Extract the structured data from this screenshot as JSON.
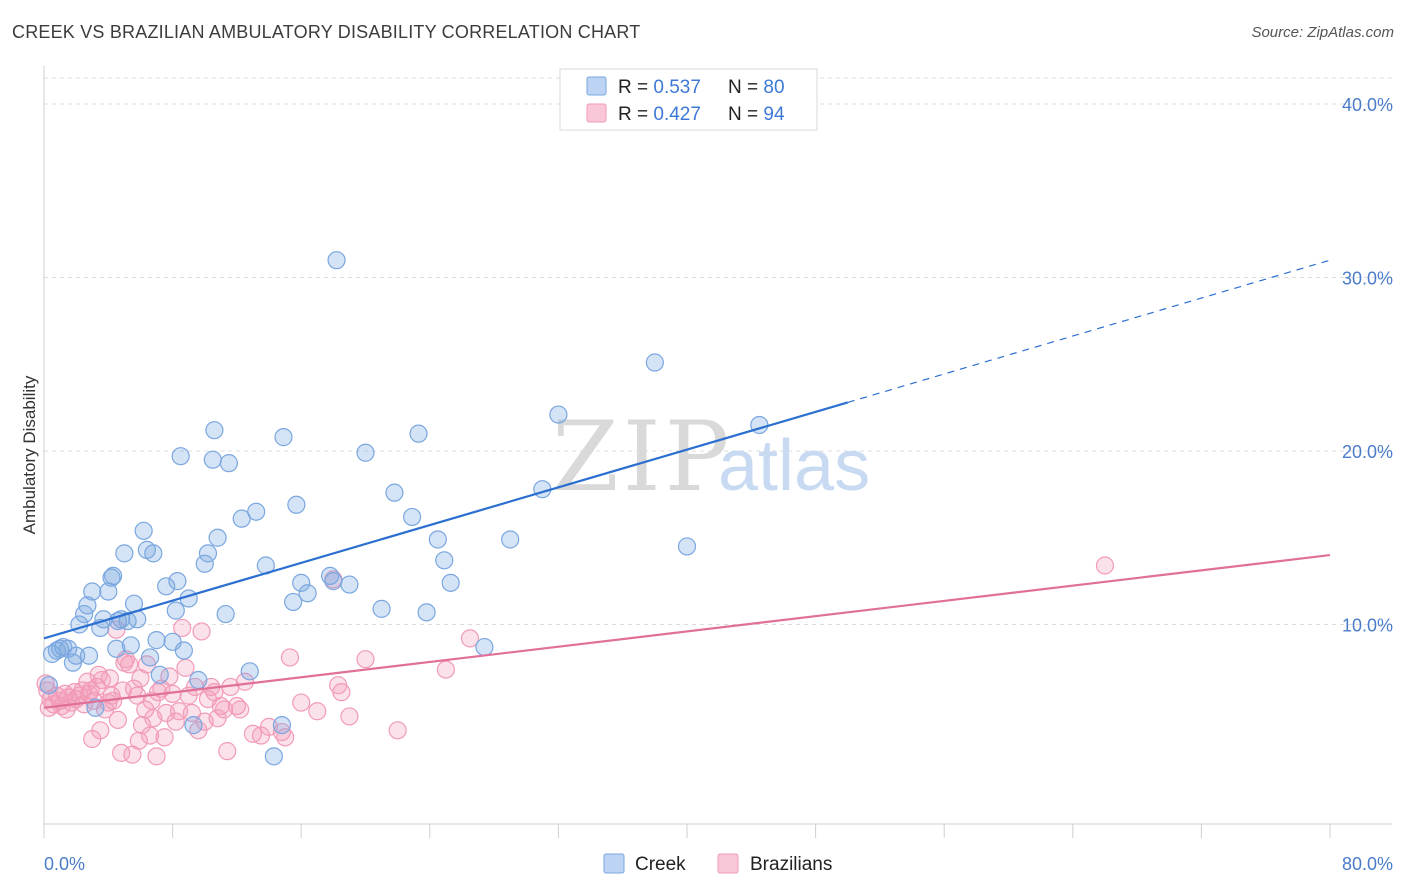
{
  "header": {
    "title": "CREEK VS BRAZILIAN AMBULATORY DISABILITY CORRELATION CHART",
    "source": "Source: ZipAtlas.com"
  },
  "watermark": {
    "part1": "ZIP",
    "part2": "atlas"
  },
  "chart_data": {
    "type": "scatter",
    "ylabel": "Ambulatory Disability",
    "xlim": [
      0,
      80
    ],
    "ylim": [
      -1.5,
      41.5
    ],
    "x_tick_labels": [
      "0.0%",
      "80.0%"
    ],
    "y_ticks": [
      10,
      20,
      30,
      40
    ],
    "y_tick_labels": [
      "10.0%",
      "20.0%",
      "30.0%",
      "40.0%"
    ],
    "grid": true,
    "legend_position": "top-center",
    "series": [
      {
        "name": "Creek",
        "color": "#7aa7e0",
        "line_color": "#2b6fd0",
        "R": "0.537",
        "N": "80",
        "R_label": "R = 0.537",
        "N_label": "N = 80",
        "trend": {
          "x0": 0,
          "y0": 9.2,
          "x1": 50,
          "y1": 22.8,
          "x_dash_end": 80,
          "y_dash_end": 31.0
        },
        "points": [
          [
            0.3,
            6.5
          ],
          [
            0.5,
            8.3
          ],
          [
            0.8,
            8.5
          ],
          [
            1.2,
            8.7
          ],
          [
            1.5,
            8.6
          ],
          [
            1.8,
            7.8
          ],
          [
            2.0,
            8.2
          ],
          [
            2.2,
            10.0
          ],
          [
            2.5,
            10.6
          ],
          [
            2.7,
            11.1
          ],
          [
            2.8,
            8.2
          ],
          [
            3.0,
            11.9
          ],
          [
            3.2,
            5.2
          ],
          [
            3.5,
            9.8
          ],
          [
            3.7,
            10.3
          ],
          [
            4.0,
            11.9
          ],
          [
            4.2,
            12.7
          ],
          [
            4.3,
            12.8
          ],
          [
            4.6,
            10.2
          ],
          [
            4.8,
            10.3
          ],
          [
            5.0,
            14.1
          ],
          [
            5.2,
            10.2
          ],
          [
            5.4,
            8.8
          ],
          [
            5.6,
            11.2
          ],
          [
            5.8,
            10.3
          ],
          [
            6.2,
            15.4
          ],
          [
            6.4,
            14.3
          ],
          [
            6.6,
            8.1
          ],
          [
            6.8,
            14.1
          ],
          [
            7.0,
            9.1
          ],
          [
            7.2,
            7.1
          ],
          [
            7.6,
            12.2
          ],
          [
            8.0,
            9.0
          ],
          [
            8.2,
            10.8
          ],
          [
            8.3,
            12.5
          ],
          [
            8.5,
            19.7
          ],
          [
            8.7,
            8.5
          ],
          [
            9.0,
            11.5
          ],
          [
            9.3,
            4.2
          ],
          [
            9.6,
            6.8
          ],
          [
            10.0,
            13.5
          ],
          [
            10.2,
            14.1
          ],
          [
            10.5,
            19.5
          ],
          [
            10.6,
            21.2
          ],
          [
            10.8,
            15.0
          ],
          [
            11.3,
            10.6
          ],
          [
            11.5,
            19.3
          ],
          [
            12.3,
            16.1
          ],
          [
            12.8,
            7.3
          ],
          [
            13.2,
            16.5
          ],
          [
            13.8,
            13.4
          ],
          [
            14.3,
            2.4
          ],
          [
            14.8,
            4.2
          ],
          [
            14.9,
            20.8
          ],
          [
            15.5,
            11.3
          ],
          [
            15.7,
            16.9
          ],
          [
            16.0,
            12.4
          ],
          [
            16.4,
            11.8
          ],
          [
            17.8,
            12.8
          ],
          [
            18.0,
            12.5
          ],
          [
            18.2,
            31.0
          ],
          [
            19.0,
            12.3
          ],
          [
            20.0,
            19.9
          ],
          [
            21.0,
            10.9
          ],
          [
            21.8,
            17.6
          ],
          [
            22.9,
            16.2
          ],
          [
            23.3,
            21.0
          ],
          [
            23.8,
            10.7
          ],
          [
            24.5,
            14.9
          ],
          [
            24.9,
            13.7
          ],
          [
            25.3,
            12.4
          ],
          [
            27.4,
            8.7
          ],
          [
            29.0,
            14.9
          ],
          [
            31.0,
            17.8
          ],
          [
            32.0,
            22.1
          ],
          [
            38.0,
            25.1
          ],
          [
            40.0,
            14.5
          ],
          [
            44.5,
            21.5
          ],
          [
            1.0,
            8.6
          ],
          [
            4.5,
            8.6
          ]
        ]
      },
      {
        "name": "Brazilians",
        "color": "#f29bb8",
        "line_color": "#e0709a",
        "R": "0.427",
        "N": "94",
        "R_label": "R = 0.427",
        "N_label": "N = 94",
        "trend": {
          "x0": 0,
          "y0": 5.2,
          "x1": 80,
          "y1": 14.0
        },
        "points": [
          [
            0.2,
            6.2
          ],
          [
            0.4,
            5.7
          ],
          [
            0.6,
            5.4
          ],
          [
            0.8,
            5.9
          ],
          [
            1.0,
            5.6
          ],
          [
            1.1,
            5.3
          ],
          [
            1.3,
            6.0
          ],
          [
            1.5,
            5.8
          ],
          [
            1.7,
            5.5
          ],
          [
            1.9,
            6.1
          ],
          [
            2.0,
            5.7
          ],
          [
            2.2,
            5.9
          ],
          [
            2.4,
            6.2
          ],
          [
            2.5,
            5.4
          ],
          [
            2.7,
            6.7
          ],
          [
            2.8,
            6.0
          ],
          [
            3.0,
            3.4
          ],
          [
            3.1,
            5.6
          ],
          [
            3.3,
            6.4
          ],
          [
            3.4,
            7.1
          ],
          [
            3.5,
            3.9
          ],
          [
            3.6,
            6.8
          ],
          [
            3.8,
            5.1
          ],
          [
            4.0,
            5.5
          ],
          [
            4.1,
            6.9
          ],
          [
            4.2,
            5.9
          ],
          [
            4.3,
            5.6
          ],
          [
            4.5,
            9.7
          ],
          [
            4.6,
            4.5
          ],
          [
            4.8,
            2.6
          ],
          [
            4.9,
            6.2
          ],
          [
            5.0,
            7.8
          ],
          [
            5.1,
            8.0
          ],
          [
            5.3,
            7.7
          ],
          [
            5.5,
            2.5
          ],
          [
            5.6,
            6.3
          ],
          [
            5.8,
            5.9
          ],
          [
            5.9,
            3.3
          ],
          [
            6.0,
            6.9
          ],
          [
            6.1,
            4.2
          ],
          [
            6.3,
            5.1
          ],
          [
            6.4,
            7.7
          ],
          [
            6.6,
            3.6
          ],
          [
            6.7,
            5.6
          ],
          [
            6.8,
            4.6
          ],
          [
            7.0,
            2.4
          ],
          [
            7.1,
            6.1
          ],
          [
            7.3,
            6.3
          ],
          [
            7.5,
            3.5
          ],
          [
            7.6,
            4.9
          ],
          [
            7.8,
            7.0
          ],
          [
            8.0,
            6.0
          ],
          [
            8.2,
            4.4
          ],
          [
            8.4,
            5.0
          ],
          [
            8.6,
            9.8
          ],
          [
            8.8,
            7.5
          ],
          [
            9.0,
            5.9
          ],
          [
            9.2,
            4.9
          ],
          [
            9.4,
            6.4
          ],
          [
            9.6,
            3.9
          ],
          [
            9.8,
            9.6
          ],
          [
            10.0,
            4.4
          ],
          [
            10.2,
            5.7
          ],
          [
            10.4,
            6.4
          ],
          [
            10.6,
            6.1
          ],
          [
            10.8,
            4.6
          ],
          [
            11.0,
            5.3
          ],
          [
            11.2,
            5.1
          ],
          [
            11.4,
            2.7
          ],
          [
            11.6,
            6.4
          ],
          [
            12.0,
            5.3
          ],
          [
            12.2,
            5.1
          ],
          [
            12.5,
            6.7
          ],
          [
            13.0,
            3.7
          ],
          [
            13.5,
            3.6
          ],
          [
            14.0,
            4.1
          ],
          [
            14.8,
            3.8
          ],
          [
            15.0,
            3.5
          ],
          [
            15.3,
            8.1
          ],
          [
            16.0,
            5.5
          ],
          [
            17.0,
            5.0
          ],
          [
            18.0,
            12.6
          ],
          [
            18.3,
            6.5
          ],
          [
            18.5,
            6.1
          ],
          [
            19.0,
            4.7
          ],
          [
            20.0,
            8.0
          ],
          [
            22.0,
            3.9
          ],
          [
            25.0,
            7.4
          ],
          [
            26.5,
            9.2
          ],
          [
            66.0,
            13.4
          ],
          [
            0.1,
            6.6
          ],
          [
            0.3,
            5.2
          ],
          [
            1.4,
            5.1
          ],
          [
            2.9,
            6.2
          ]
        ]
      }
    ]
  }
}
